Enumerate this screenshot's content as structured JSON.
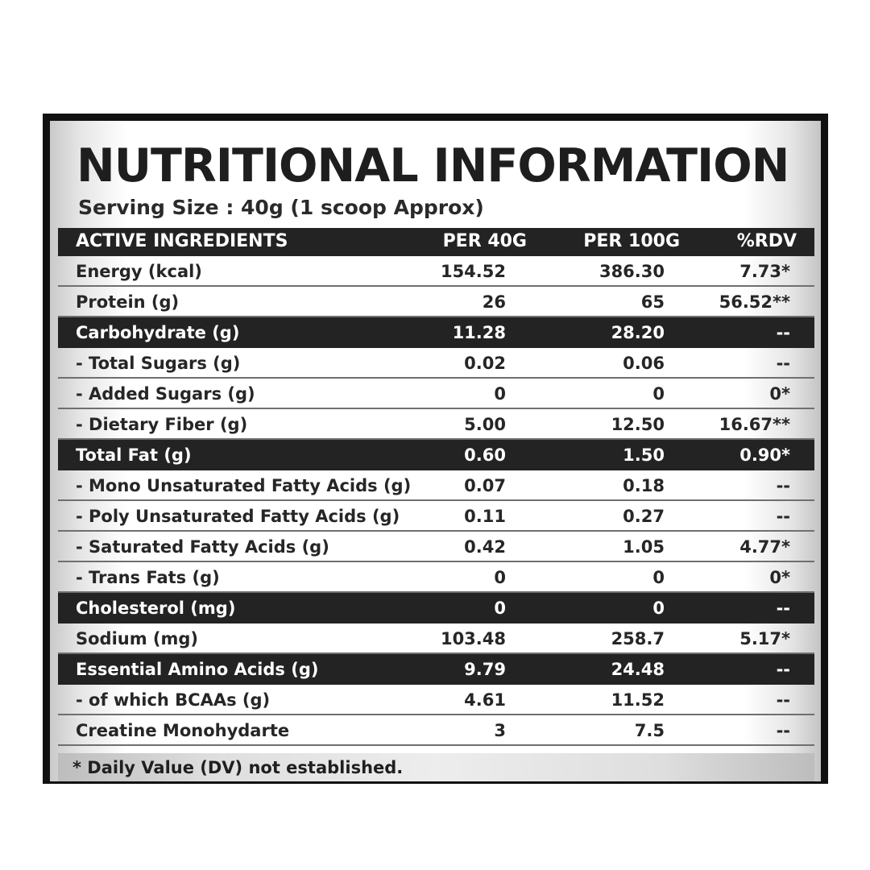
{
  "title": "NUTRITIONAL INFORMATION",
  "serving_size": "Serving Size : 40g (1 scoop Approx)",
  "headers": {
    "ingredient": "ACTIVE INGREDIENTS",
    "per_40g": "PER 40G",
    "per_100g": "PER 100G",
    "rdv": "%RDV"
  },
  "rows": [
    {
      "name": "Energy (kcal)",
      "per_40g": "154.52",
      "per_100g": "386.30",
      "rdv": "7.73*",
      "highlight": false
    },
    {
      "name": "Protein (g)",
      "per_40g": "26",
      "per_100g": "65",
      "rdv": "56.52**",
      "highlight": false
    },
    {
      "name": "Carbohydrate (g)",
      "per_40g": "11.28",
      "per_100g": "28.20",
      "rdv": "--",
      "highlight": true
    },
    {
      "name": "- Total Sugars (g)",
      "per_40g": "0.02",
      "per_100g": "0.06",
      "rdv": "--",
      "highlight": false
    },
    {
      "name": "- Added Sugars (g)",
      "per_40g": "0",
      "per_100g": "0",
      "rdv": "0*",
      "highlight": false
    },
    {
      "name": "- Dietary Fiber (g)",
      "per_40g": "5.00",
      "per_100g": "12.50",
      "rdv": "16.67**",
      "highlight": false
    },
    {
      "name": "Total Fat (g)",
      "per_40g": "0.60",
      "per_100g": "1.50",
      "rdv": "0.90*",
      "highlight": true
    },
    {
      "name": "- Mono Unsaturated Fatty Acids (g)",
      "per_40g": "0.07",
      "per_100g": "0.18",
      "rdv": "--",
      "highlight": false
    },
    {
      "name": "- Poly Unsaturated Fatty Acids (g)",
      "per_40g": "0.11",
      "per_100g": "0.27",
      "rdv": "--",
      "highlight": false
    },
    {
      "name": "- Saturated Fatty Acids (g)",
      "per_40g": "0.42",
      "per_100g": "1.05",
      "rdv": "4.77*",
      "highlight": false
    },
    {
      "name": "- Trans Fats (g)",
      "per_40g": "0",
      "per_100g": "0",
      "rdv": "0*",
      "highlight": false
    },
    {
      "name": "Cholesterol (mg)",
      "per_40g": "0",
      "per_100g": "0",
      "rdv": "--",
      "highlight": true
    },
    {
      "name": "Sodium (mg)",
      "per_40g": "103.48",
      "per_100g": "258.7",
      "rdv": "5.17*",
      "highlight": false
    },
    {
      "name": "Essential Amino Acids (g)",
      "per_40g": "9.79",
      "per_100g": "24.48",
      "rdv": "--",
      "highlight": true
    },
    {
      "name": "- of which BCAAs (g)",
      "per_40g": "4.61",
      "per_100g": "11.52",
      "rdv": "--",
      "highlight": false
    },
    {
      "name": "Creatine Monohydarte",
      "per_40g": "3",
      "per_100g": "7.5",
      "rdv": "--",
      "highlight": false
    }
  ],
  "footnote": "* Daily Value (DV) not established.",
  "colors": {
    "frame": "#111111",
    "header_band": "#232323",
    "text": "#1f1f1f"
  }
}
